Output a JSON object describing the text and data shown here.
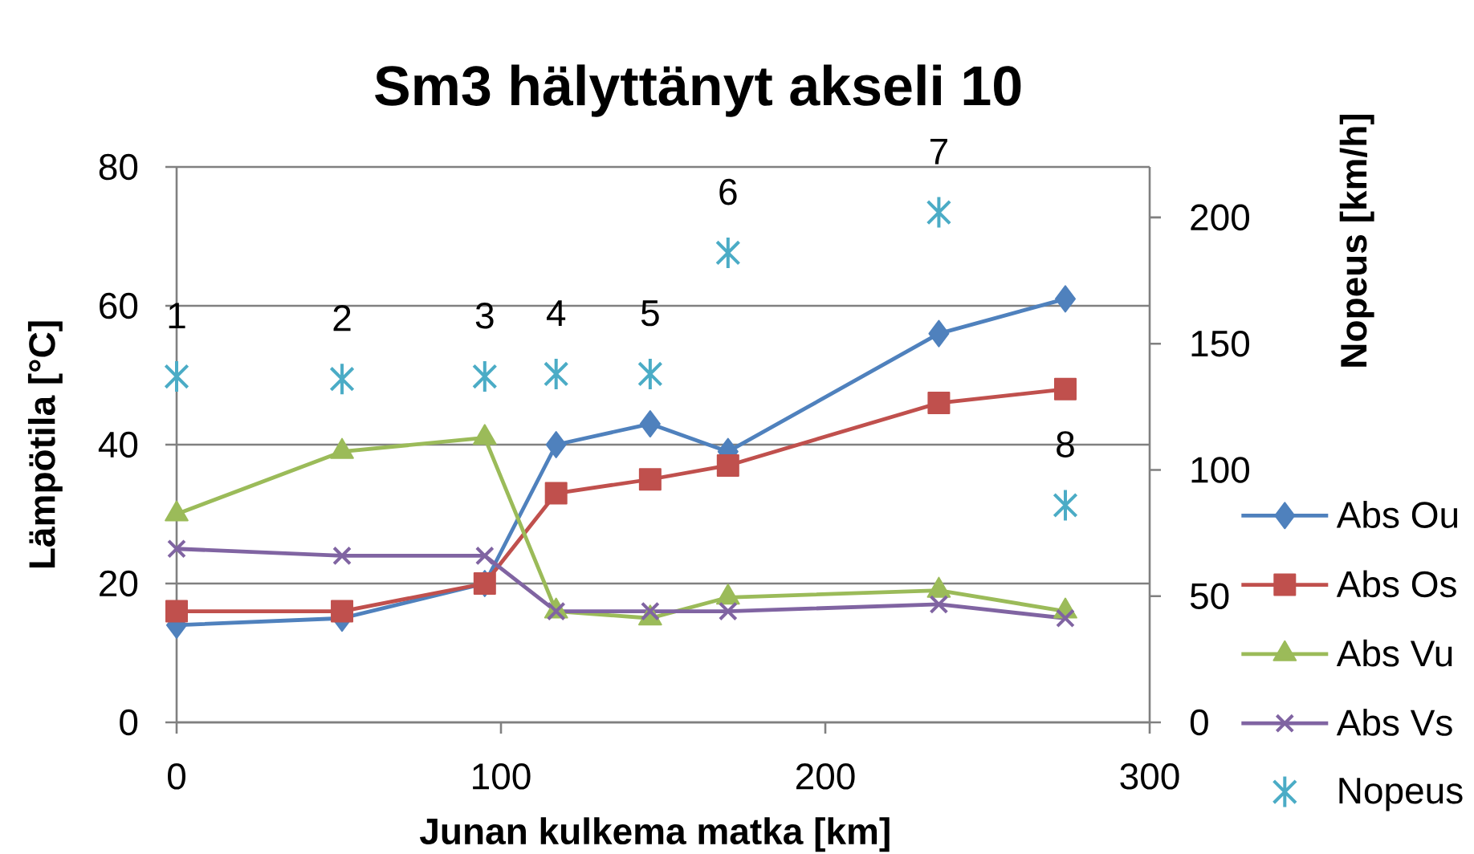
{
  "chart_data": {
    "type": "line",
    "title": "Sm3 hälyttänyt akseli 10",
    "xlabel": "Junan kulkema matka [km]",
    "ylabel": "Lämpötila [°C]",
    "y2label": "Nopeus [km/h]",
    "x": [
      0,
      51,
      95,
      117,
      146,
      170,
      235,
      274
    ],
    "xlim": [
      0,
      300
    ],
    "xticks": [
      0,
      100,
      200,
      300
    ],
    "ylim": [
      0,
      80
    ],
    "yticks": [
      0,
      20,
      40,
      60,
      80
    ],
    "y2lim": [
      0,
      220
    ],
    "y2ticks": [
      0,
      50,
      100,
      150,
      200
    ],
    "grid": "y",
    "legend": "right",
    "annotations": [
      "1",
      "2",
      "3",
      "4",
      "5",
      "6",
      "7",
      "8"
    ],
    "series": [
      {
        "name": "Abs Ou",
        "color": "#4f81bd",
        "marker": "diamond",
        "values": [
          14,
          15,
          20,
          40,
          43,
          39,
          56,
          61
        ]
      },
      {
        "name": "Abs Os",
        "color": "#c0504d",
        "marker": "square",
        "values": [
          16,
          16,
          20,
          33,
          35,
          37,
          46,
          48
        ]
      },
      {
        "name": "Abs Vu",
        "color": "#9bbb59",
        "marker": "triangle",
        "values": [
          30,
          39,
          41,
          16,
          15,
          18,
          19,
          16
        ]
      },
      {
        "name": "Abs Vs",
        "color": "#8064a2",
        "marker": "cross",
        "values": [
          25,
          24,
          24,
          16,
          16,
          16,
          17,
          15
        ]
      },
      {
        "name": "Nopeus",
        "color": "#4bacc6",
        "type": "scatter",
        "axis": "y2",
        "values": [
          137,
          136,
          137,
          138,
          138,
          186,
          202,
          86
        ]
      }
    ]
  }
}
